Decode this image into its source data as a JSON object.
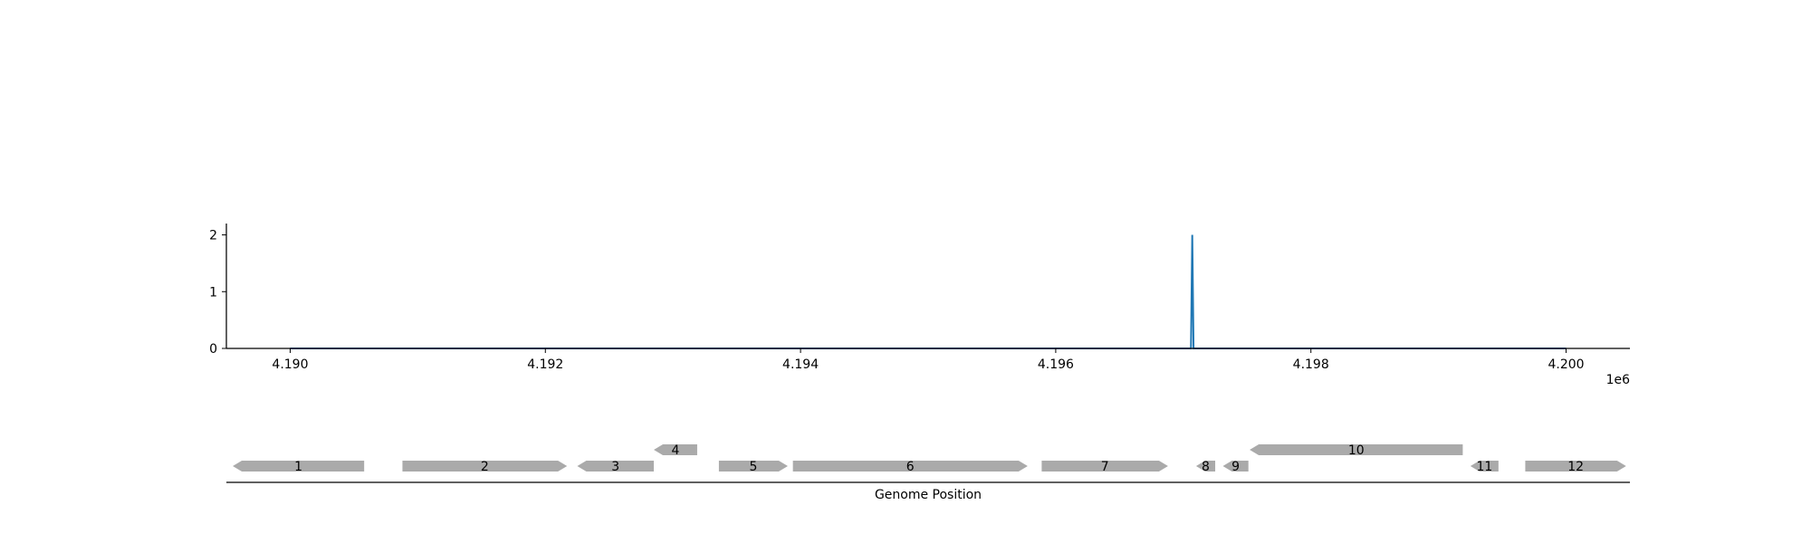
{
  "chart_data": {
    "type": "line",
    "x_offset_label": "1e6",
    "x_ticks": [
      4190000,
      4192000,
      4194000,
      4196000,
      4198000,
      4200000
    ],
    "x_tick_labels": [
      "4.190",
      "4.192",
      "4.194",
      "4.196",
      "4.198",
      "4.200"
    ],
    "xlim": [
      4189500,
      4200500
    ],
    "y_ticks": [
      0,
      1,
      2
    ],
    "y_tick_labels": [
      "0",
      "1",
      "2"
    ],
    "ylim": [
      0,
      2.2
    ],
    "series": [
      {
        "color": "#1f77b4",
        "x": [
          4190000,
          4197060,
          4197070,
          4197080,
          4200000
        ],
        "y": [
          0,
          0,
          2,
          0,
          0
        ]
      }
    ],
    "xlabel": "Genome Position",
    "genes": [
      {
        "label": "1",
        "start": 4189550,
        "end": 4190580,
        "strand": "-",
        "row": 0
      },
      {
        "label": "2",
        "start": 4190880,
        "end": 4192170,
        "strand": "+",
        "row": 0
      },
      {
        "label": "3",
        "start": 4192250,
        "end": 4192850,
        "strand": "-",
        "row": 0
      },
      {
        "label": "4",
        "start": 4192850,
        "end": 4193190,
        "strand": "-",
        "row": 1
      },
      {
        "label": "5",
        "start": 4193360,
        "end": 4193900,
        "strand": "+",
        "row": 0
      },
      {
        "label": "6",
        "start": 4193940,
        "end": 4195780,
        "strand": "+",
        "row": 0
      },
      {
        "label": "7",
        "start": 4195890,
        "end": 4196880,
        "strand": "+",
        "row": 0
      },
      {
        "label": "8",
        "start": 4197100,
        "end": 4197250,
        "strand": "-",
        "row": 0
      },
      {
        "label": "9",
        "start": 4197310,
        "end": 4197510,
        "strand": "-",
        "row": 0
      },
      {
        "label": "10",
        "start": 4197520,
        "end": 4199190,
        "strand": "-",
        "row": 1
      },
      {
        "label": "11",
        "start": 4199250,
        "end": 4199470,
        "strand": "-",
        "row": 0
      },
      {
        "label": "12",
        "start": 4199680,
        "end": 4200470,
        "strand": "+",
        "row": 0
      }
    ],
    "gene_color": "#aaaaaa",
    "grid": false
  }
}
